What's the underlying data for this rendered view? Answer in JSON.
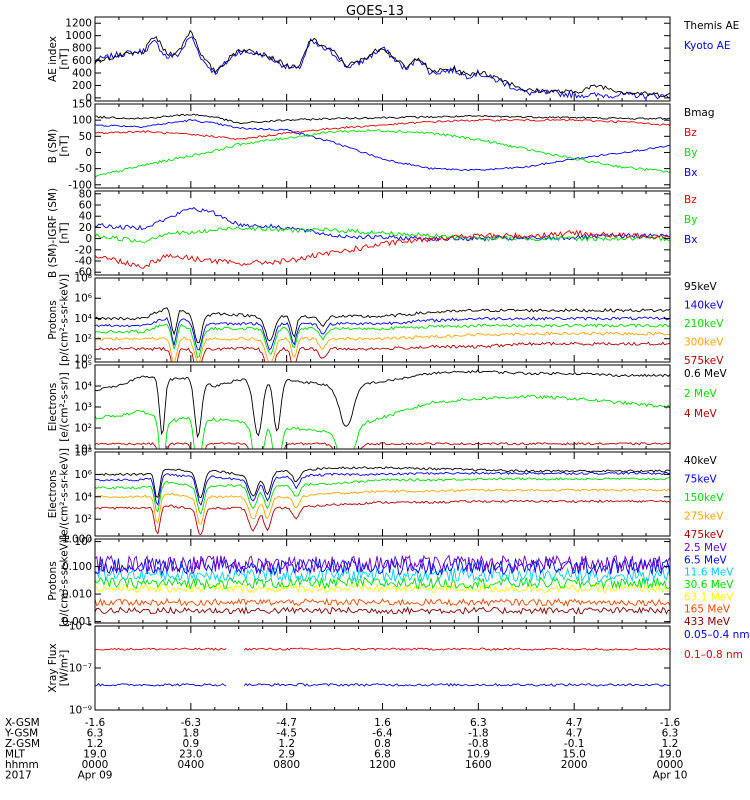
{
  "figure": {
    "title": "GOES-13",
    "footer": {
      "row_labels": [
        "X-GSM",
        "Y-GSM",
        "Z-GSM",
        "MLT",
        "hhmm",
        "2017"
      ],
      "columns": [
        {
          "values": [
            "-1.6",
            "6.3",
            "1.2",
            "19.0",
            "0000",
            "Apr 09"
          ]
        },
        {
          "values": [
            "-6.3",
            "1.8",
            "0.9",
            "23.0",
            "0400",
            ""
          ]
        },
        {
          "values": [
            "-4.7",
            "-4.5",
            "1.2",
            "2.9",
            "0800",
            ""
          ]
        },
        {
          "values": [
            "1.6",
            "-6.4",
            "0.8",
            "6.8",
            "1200",
            ""
          ]
        },
        {
          "values": [
            "6.3",
            "-1.8",
            "-0.8",
            "10.9",
            "1600",
            ""
          ]
        },
        {
          "values": [
            "4.7",
            "4.7",
            "-0.1",
            "15.0",
            "2000",
            ""
          ]
        },
        {
          "values": [
            "-1.6",
            "6.3",
            "1.2",
            "19.0",
            "0000",
            "Apr 10"
          ]
        }
      ]
    }
  },
  "chart_data": [
    {
      "type": "line",
      "ylabel": [
        "AE index",
        "[nT]"
      ],
      "yscale": "linear",
      "ylim": [
        -50,
        1300
      ],
      "ticks": [
        {
          "v": 1200,
          "label": "1200"
        },
        {
          "v": 1000,
          "label": "1000"
        },
        {
          "v": 800,
          "label": "800"
        },
        {
          "v": 600,
          "label": "600"
        },
        {
          "v": 400,
          "label": "400"
        },
        {
          "v": 200,
          "label": "200"
        },
        {
          "v": 0,
          "label": "0"
        }
      ],
      "x_hours": [
        0,
        1,
        2,
        2.5,
        3,
        3.5,
        4,
        4.5,
        5,
        6,
        7,
        8,
        8.5,
        9,
        10,
        10.5,
        11,
        12,
        13,
        13.5,
        14,
        15,
        15.5,
        16,
        17,
        18,
        19,
        20,
        21,
        22,
        23,
        24
      ],
      "series": [
        {
          "name": "Kyoto AE",
          "color": "#0000ff",
          "noise": 50,
          "values": [
            600,
            700,
            750,
            900,
            650,
            700,
            1000,
            600,
            400,
            750,
            700,
            500,
            450,
            900,
            700,
            500,
            550,
            800,
            450,
            650,
            400,
            450,
            350,
            400,
            250,
            80,
            80,
            50,
            40,
            50,
            40,
            30
          ]
        },
        {
          "name": "Themis AE",
          "color": "#000000",
          "noise": 40,
          "values": [
            580,
            680,
            730,
            1000,
            700,
            750,
            1100,
            650,
            420,
            780,
            720,
            520,
            470,
            950,
            730,
            520,
            580,
            820,
            470,
            670,
            420,
            470,
            370,
            420,
            300,
            120,
            110,
            90,
            200,
            100,
            60,
            50
          ]
        }
      ]
    },
    {
      "type": "line",
      "ylabel": [
        "B (SM)",
        "[nT]"
      ],
      "yscale": "linear",
      "ylim": [
        -110,
        150
      ],
      "ticks": [
        {
          "v": 150,
          "label": "150"
        },
        {
          "v": 100,
          "label": "100"
        },
        {
          "v": 50,
          "label": "50"
        },
        {
          "v": 0,
          "label": "0"
        },
        {
          "v": -50,
          "label": "-50"
        },
        {
          "v": -100,
          "label": "-100"
        }
      ],
      "x_hours": [
        0,
        2,
        4,
        5,
        6,
        8,
        10,
        12,
        14,
        16,
        18,
        20,
        22,
        24
      ],
      "series": [
        {
          "name": "Bx",
          "color": "#0000ff",
          "noise": 3,
          "values": [
            85,
            80,
            100,
            90,
            75,
            70,
            30,
            -20,
            -50,
            -55,
            -45,
            -20,
            0,
            20
          ]
        },
        {
          "name": "By",
          "color": "#00dd00",
          "noise": 4,
          "values": [
            -75,
            -40,
            -10,
            5,
            25,
            45,
            65,
            68,
            60,
            40,
            10,
            -20,
            -45,
            -60
          ]
        },
        {
          "name": "Bz",
          "color": "#dd0000",
          "noise": 3,
          "values": [
            60,
            65,
            55,
            50,
            40,
            60,
            75,
            85,
            95,
            100,
            100,
            100,
            95,
            85
          ]
        },
        {
          "name": "Bmag",
          "color": "#000000",
          "noise": 3,
          "values": [
            110,
            105,
            118,
            110,
            90,
            100,
            105,
            108,
            110,
            112,
            110,
            108,
            105,
            105
          ]
        }
      ]
    },
    {
      "type": "line",
      "ylabel": [
        "B (SM)-IGRF (SM)",
        "[nT]"
      ],
      "yscale": "linear",
      "ylim": [
        -65,
        85
      ],
      "ticks": [
        {
          "v": 80,
          "label": "80"
        },
        {
          "v": 60,
          "label": "60"
        },
        {
          "v": 40,
          "label": "40"
        },
        {
          "v": 20,
          "label": "20"
        },
        {
          "v": 0,
          "label": "0"
        },
        {
          "v": -20,
          "label": "-20"
        },
        {
          "v": -40,
          "label": "-40"
        },
        {
          "v": -60,
          "label": "-60"
        }
      ],
      "x_hours": [
        0,
        1,
        2,
        3,
        4,
        5,
        6,
        8,
        10,
        12,
        14,
        16,
        18,
        20,
        22,
        24
      ],
      "series": [
        {
          "name": "Bx",
          "color": "#0000ff",
          "noise": 4,
          "values": [
            25,
            20,
            20,
            35,
            55,
            45,
            25,
            20,
            5,
            2,
            0,
            0,
            0,
            2,
            5,
            5
          ]
        },
        {
          "name": "By",
          "color": "#00dd00",
          "noise": 4,
          "values": [
            5,
            0,
            -5,
            10,
            10,
            15,
            20,
            15,
            15,
            10,
            5,
            0,
            0,
            0,
            0,
            0
          ]
        },
        {
          "name": "Bz",
          "color": "#dd0000",
          "noise": 5,
          "values": [
            -30,
            -40,
            -50,
            -30,
            -35,
            -40,
            -45,
            -40,
            -25,
            -10,
            0,
            5,
            5,
            10,
            5,
            5
          ]
        }
      ]
    },
    {
      "type": "line",
      "ylabel": [
        "Protons",
        "[p/(cm²-s-sr-keV)]"
      ],
      "yscale": "log",
      "ylim": [
        -0.3,
        8
      ],
      "ticks": [
        {
          "v": 8,
          "label": "10⁸"
        },
        {
          "v": 6,
          "label": "10⁶"
        },
        {
          "v": 4,
          "label": "10⁴"
        },
        {
          "v": 2,
          "label": "10²"
        },
        {
          "v": 0,
          "label": "10⁰"
        }
      ],
      "x_hours": [
        0,
        2,
        3,
        3.5,
        4.3,
        5,
        7,
        7.7,
        8.5,
        10,
        12,
        14,
        16,
        18,
        20,
        22,
        24
      ],
      "dips": [
        {
          "h": 3.3,
          "d": 2.5,
          "w": 0.15
        },
        {
          "h": 4.3,
          "d": 2.5,
          "w": 0.2
        },
        {
          "h": 7.3,
          "d": 2.5,
          "w": 0.25
        },
        {
          "h": 8.3,
          "d": 2,
          "w": 0.15
        },
        {
          "h": 9.5,
          "d": 1,
          "w": 0.2
        }
      ],
      "series": [
        {
          "name": "575keV",
          "color": "#b00000",
          "noise": 0.15,
          "values": [
            1,
            1,
            1,
            1,
            1,
            1,
            1,
            1,
            1,
            1,
            1,
            1.2,
            1.2,
            1.5,
            1.5,
            1.5,
            1.5
          ]
        },
        {
          "name": "300keV",
          "color": "#ffa500",
          "noise": 0.15,
          "values": [
            2,
            2,
            2,
            2,
            2,
            2,
            2,
            2,
            2,
            2,
            2,
            2.2,
            2.4,
            2.5,
            2.5,
            2.5,
            2.5
          ]
        },
        {
          "name": "210keV",
          "color": "#00dd00",
          "noise": 0.15,
          "values": [
            2.7,
            2.7,
            3.5,
            3.5,
            2.7,
            3,
            3,
            3,
            3,
            3,
            3,
            3.2,
            3.3,
            3.3,
            3.3,
            3.3,
            3.3
          ]
        },
        {
          "name": "140keV",
          "color": "#0000ff",
          "noise": 0.15,
          "values": [
            3.3,
            3.3,
            4,
            4,
            3.3,
            3.5,
            3.5,
            3.5,
            3.5,
            3.5,
            3.5,
            3.8,
            4,
            4,
            4,
            4,
            4
          ]
        },
        {
          "name": "95keV",
          "color": "#000000",
          "noise": 0.15,
          "values": [
            4,
            4,
            5,
            5,
            4,
            4.5,
            4.2,
            4.2,
            4.2,
            4.2,
            4.2,
            4.6,
            4.8,
            4.8,
            4.8,
            4.8,
            4.8
          ]
        }
      ]
    },
    {
      "type": "line",
      "ylabel": [
        "Electrons",
        "[e/(cm²-s-sr)]"
      ],
      "yscale": "log",
      "ylim": [
        1,
        5
      ],
      "ticks": [
        {
          "v": 5,
          "label": "10⁵"
        },
        {
          "v": 4,
          "label": "10⁴"
        },
        {
          "v": 3,
          "label": "10³"
        },
        {
          "v": 2,
          "label": "10²"
        },
        {
          "v": 1,
          "label": "10¹"
        }
      ],
      "x_hours": [
        0,
        1,
        2,
        3,
        4,
        5,
        6,
        8,
        10,
        12,
        14,
        16,
        18,
        20,
        22,
        24
      ],
      "dips": [
        {
          "h": 2.8,
          "d": 2.7,
          "w": 0.15
        },
        {
          "h": 4.3,
          "d": 2.7,
          "w": 0.2
        },
        {
          "h": 6.8,
          "d": 2.7,
          "w": 0.25
        },
        {
          "h": 7.6,
          "d": 2.5,
          "w": 0.2
        },
        {
          "h": 10.5,
          "d": 2,
          "w": 0.4
        }
      ],
      "series": [
        {
          "name": "4 MeV",
          "color": "#b00000",
          "noise": 0.05,
          "values": [
            1.25,
            1.25,
            1.25,
            1.25,
            1.25,
            1.25,
            1.25,
            1.25,
            1.25,
            1.25,
            1.25,
            1.25,
            1.25,
            1.25,
            1.25,
            1.25
          ]
        },
        {
          "name": "2 MeV",
          "color": "#00dd00",
          "noise": 0.08,
          "values": [
            2.5,
            2.6,
            2.8,
            2.3,
            2.5,
            2.4,
            2.3,
            2,
            1.8,
            2.5,
            3.2,
            3.4,
            3.5,
            3.4,
            3.2,
            3
          ]
        },
        {
          "name": "0.6 MeV",
          "color": "#000000",
          "noise": 0.06,
          "values": [
            3.8,
            4,
            4.5,
            4.3,
            4.4,
            4,
            4.3,
            4.3,
            4,
            4.2,
            4.6,
            4.7,
            4.6,
            4.6,
            4.5,
            4.5
          ]
        }
      ]
    },
    {
      "type": "line",
      "ylabel": [
        "Electrons",
        "[e/(cm²-s-sr-keV)]"
      ],
      "yscale": "log",
      "ylim": [
        0.5,
        8
      ],
      "ticks": [
        {
          "v": 8,
          "label": "10⁸"
        },
        {
          "v": 6,
          "label": "10⁶"
        },
        {
          "v": 4,
          "label": "10⁴"
        },
        {
          "v": 2,
          "label": "10²"
        },
        {
          "v": 0,
          "label": "10⁰"
        }
      ],
      "x_hours": [
        0,
        2,
        3,
        4,
        5,
        6,
        8,
        10,
        12,
        14,
        16,
        18,
        20,
        22,
        24
      ],
      "dips": [
        {
          "h": 2.6,
          "d": 2.5,
          "w": 0.15
        },
        {
          "h": 4.4,
          "d": 2.5,
          "w": 0.2
        },
        {
          "h": 6.6,
          "d": 2,
          "w": 0.25
        },
        {
          "h": 7.2,
          "d": 2,
          "w": 0.2
        },
        {
          "h": 8.4,
          "d": 1,
          "w": 0.2
        }
      ],
      "series": [
        {
          "name": "475keV",
          "color": "#b00000",
          "noise": 0.1,
          "values": [
            3,
            3,
            3.2,
            3,
            3,
            3,
            3,
            3.3,
            3.5,
            3.5,
            3.6,
            3.6,
            3.6,
            3.6,
            3.6
          ]
        },
        {
          "name": "275keV",
          "color": "#ffa500",
          "noise": 0.1,
          "values": [
            4,
            4,
            4.3,
            4,
            4,
            4,
            4,
            4.3,
            4.5,
            4.5,
            4.6,
            4.6,
            4.6,
            4.6,
            4.6
          ]
        },
        {
          "name": "150keV",
          "color": "#00dd00",
          "noise": 0.1,
          "values": [
            4.8,
            4.8,
            5.3,
            5,
            5,
            5,
            5,
            5.2,
            5.5,
            5.5,
            5.6,
            5.6,
            5.6,
            5.6,
            5.6
          ]
        },
        {
          "name": "75keV",
          "color": "#0000ff",
          "noise": 0.1,
          "values": [
            5.5,
            5.5,
            6,
            5.8,
            5.8,
            5.5,
            5.8,
            6,
            6,
            6.1,
            6.1,
            6.1,
            6.1,
            6.1,
            6.1
          ]
        },
        {
          "name": "40keV",
          "color": "#000000",
          "noise": 0.1,
          "values": [
            6,
            6,
            6.5,
            6.3,
            6.3,
            6,
            6.3,
            6.6,
            6.6,
            6.5,
            6.4,
            6.3,
            6.3,
            6.3,
            6.3
          ]
        }
      ]
    },
    {
      "type": "line",
      "ylabel": [
        "Protons",
        "[p/(cm²-s-sr-keV)]"
      ],
      "yscale": "log",
      "ylim": [
        -3.05,
        0
      ],
      "ticks": [
        {
          "v": 0,
          "label": "1.000"
        },
        {
          "v": -1,
          "label": "0.100"
        },
        {
          "v": -2,
          "label": "0.010"
        },
        {
          "v": -3,
          "label": "0.001"
        }
      ],
      "x_hours": [
        0,
        24
      ],
      "series": [
        {
          "name": "433 MeV",
          "color": "#800000",
          "noise": 0.12,
          "values": [
            -2.6,
            -2.6
          ]
        },
        {
          "name": "165 MeV",
          "color": "#ff4500",
          "noise": 0.12,
          "values": [
            -2.3,
            -2.3
          ]
        },
        {
          "name": "63.1 MeV",
          "color": "#ffff00",
          "noise": 0.15,
          "values": [
            -1.8,
            -1.8
          ]
        },
        {
          "name": "30.6 MeV",
          "color": "#00dd00",
          "noise": 0.2,
          "values": [
            -1.6,
            -1.6
          ]
        },
        {
          "name": "11.6 MeV",
          "color": "#00ccff",
          "noise": 0.25,
          "values": [
            -1.3,
            -1.3
          ]
        },
        {
          "name": "6.5 MeV",
          "color": "#0000ff",
          "noise": 0.3,
          "values": [
            -1,
            -1
          ]
        },
        {
          "name": "2.5 MeV",
          "color": "#6600cc",
          "noise": 0.3,
          "values": [
            -0.9,
            -0.9
          ]
        }
      ]
    },
    {
      "type": "line",
      "ylabel": [
        "Xray Flux",
        "[W/m²]"
      ],
      "yscale": "log",
      "ylim": [
        -9,
        -5
      ],
      "ticks": [
        {
          "v": -5,
          "label": "10⁻⁵"
        },
        {
          "v": -7,
          "label": "10⁻⁷"
        },
        {
          "v": -9,
          "label": "10⁻⁹"
        }
      ],
      "x_hours": [
        0,
        24
      ],
      "gap": [
        5.5,
        6.2
      ],
      "series": [
        {
          "name": "0.1–0.8 nm",
          "color": "#dd0000",
          "noise": 0.05,
          "values": [
            -6.1,
            -6.1
          ]
        },
        {
          "name": "0.05–0.4 nm",
          "color": "#0000dd",
          "noise": 0.06,
          "values": [
            -7.8,
            -7.8
          ]
        }
      ]
    }
  ]
}
